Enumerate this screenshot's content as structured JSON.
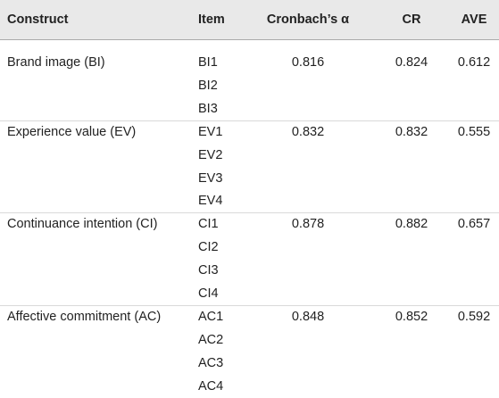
{
  "header": [
    "Construct",
    "Item",
    "Cronbach’s α",
    "CR",
    "AVE"
  ],
  "groups": [
    {
      "construct": "Brand image (BI)",
      "items": [
        "BI1",
        "BI2",
        "BI3"
      ],
      "alpha": 0.816,
      "cr": 0.824,
      "ave": 0.612
    },
    {
      "construct": "Experience value (EV)",
      "items": [
        "EV1",
        "EV2",
        "EV3",
        "EV4"
      ],
      "alpha": 0.832,
      "cr": 0.832,
      "ave": 0.555
    },
    {
      "construct": "Continuance intention (CI)",
      "items": [
        "CI1",
        "CI2",
        "CI3",
        "CI4"
      ],
      "alpha": 0.878,
      "cr": 0.882,
      "ave": 0.657
    },
    {
      "construct": "Affective commitment (AC)",
      "items": [
        "AC1",
        "AC2",
        "AC3",
        "AC4"
      ],
      "alpha": 0.848,
      "cr": 0.852,
      "ave": 0.592
    }
  ]
}
